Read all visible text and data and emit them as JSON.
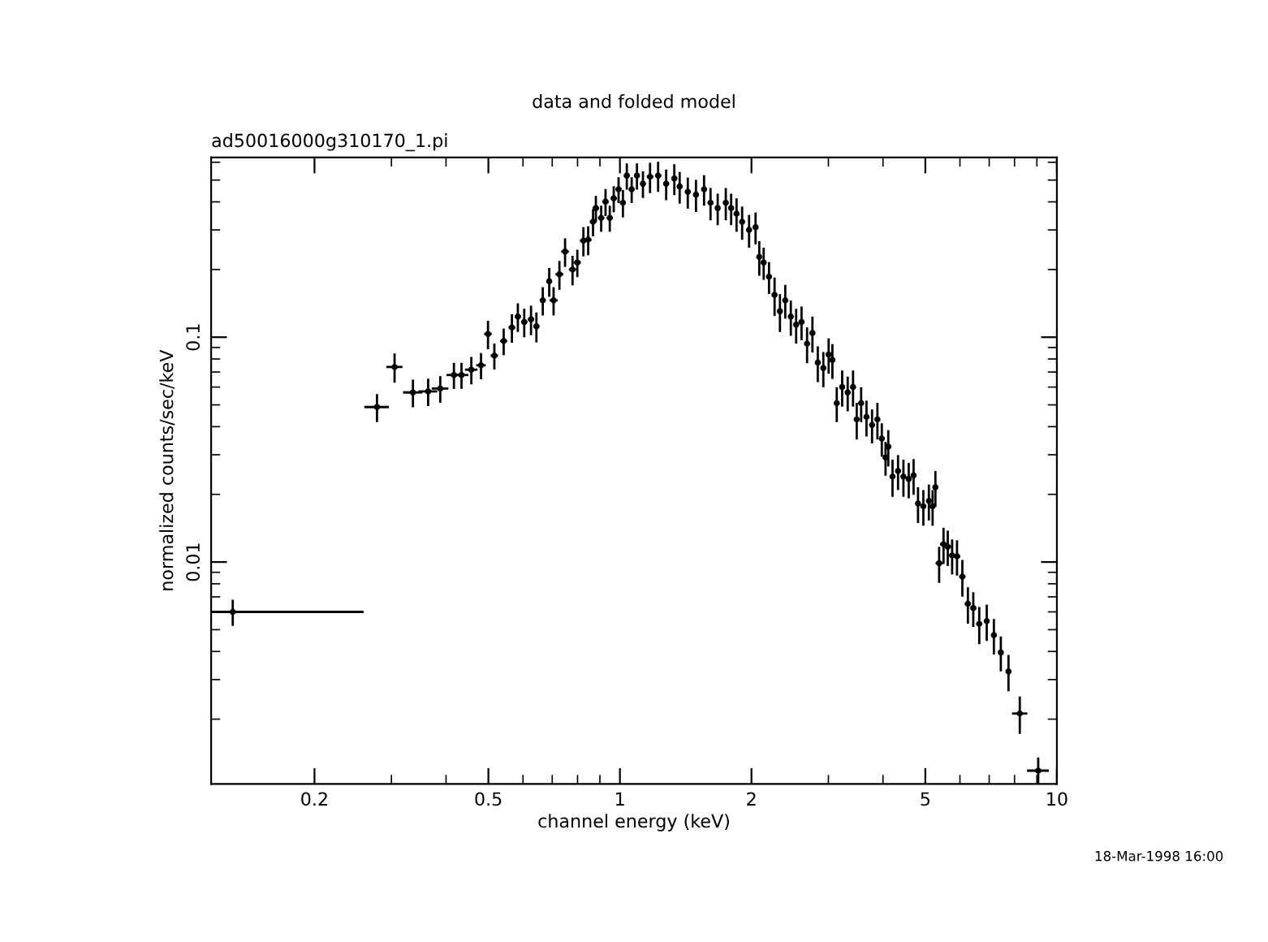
{
  "chart_data": {
    "type": "scatter",
    "title": "data and folded model",
    "subtitle": "ad50016000g310170_1.pi",
    "xlabel": "channel energy (keV)",
    "ylabel": "normalized counts/sec/keV",
    "annotations": [
      "18-Mar-1998 16:00"
    ],
    "log": "xy",
    "grid": false,
    "legend": false,
    "xlim": [
      0.116,
      10
    ],
    "ylim": [
      0.00103,
      0.63
    ],
    "xticks": [
      0.2,
      0.5,
      1,
      2,
      5,
      10
    ],
    "yticks": [
      0.01,
      0.1
    ],
    "series": [
      {
        "color": "#000000",
        "x": [
          0.13,
          0.278,
          0.305,
          0.336,
          0.364,
          0.388,
          0.417,
          0.434,
          0.457,
          0.481,
          0.499,
          0.516,
          0.542,
          0.566,
          0.584,
          0.604,
          0.626,
          0.644,
          0.666,
          0.689,
          0.705,
          0.727,
          0.749,
          0.779,
          0.799,
          0.825,
          0.846,
          0.868,
          0.881,
          0.906,
          0.927,
          0.948,
          0.968,
          0.993,
          1.016,
          1.037,
          1.064,
          1.094,
          1.129,
          1.172,
          1.223,
          1.276,
          1.332,
          1.37,
          1.43,
          1.493,
          1.558,
          1.612,
          1.674,
          1.747,
          1.797,
          1.849,
          1.904,
          1.975,
          2.044,
          2.084,
          2.133,
          2.194,
          2.259,
          2.324,
          2.39,
          2.461,
          2.531,
          2.604,
          2.681,
          2.758,
          2.837,
          2.921,
          3.004,
          3.064,
          3.135,
          3.226,
          3.321,
          3.416,
          3.483,
          3.565,
          3.667,
          3.776,
          3.884,
          3.975,
          4.054,
          4.113,
          4.206,
          4.33,
          4.455,
          4.581,
          4.7,
          4.811,
          4.948,
          5.094,
          5.195,
          5.272,
          5.377,
          5.503,
          5.627,
          5.758,
          5.908,
          6.077,
          6.257,
          6.437,
          6.643,
          6.91,
          7.175,
          7.443,
          7.749,
          8.225,
          9.063
        ],
        "values": [
          0.006,
          0.0489,
          0.0737,
          0.0568,
          0.0574,
          0.0591,
          0.0679,
          0.0679,
          0.0717,
          0.075,
          0.1034,
          0.0828,
          0.0962,
          0.1105,
          0.1235,
          0.1169,
          0.1201,
          0.1118,
          0.1459,
          0.1773,
          0.1459,
          0.1905,
          0.2405,
          0.2001,
          0.215,
          0.2688,
          0.2715,
          0.3262,
          0.3751,
          0.3394,
          0.4009,
          0.3394,
          0.4145,
          0.455,
          0.3963,
          0.5233,
          0.455,
          0.5233,
          0.4816,
          0.5172,
          0.5233,
          0.4816,
          0.5085,
          0.4681,
          0.443,
          0.4306,
          0.455,
          0.3963,
          0.3751,
          0.3963,
          0.3751,
          0.3543,
          0.3262,
          0.3,
          0.3087,
          0.2276,
          0.215,
          0.1858,
          0.1542,
          0.1305,
          0.1459,
          0.1235,
          0.1137,
          0.1169,
          0.0936,
          0.1045,
          0.0771,
          0.0729,
          0.0838,
          0.0792,
          0.0509,
          0.0601,
          0.0568,
          0.0601,
          0.0431,
          0.0509,
          0.0442,
          0.0407,
          0.0431,
          0.0354,
          0.0292,
          0.0326,
          0.024,
          0.0254,
          0.024,
          0.0234,
          0.0243,
          0.0182,
          0.0177,
          0.0187,
          0.0177,
          0.0215,
          0.00988,
          0.012,
          0.0117,
          0.0107,
          0.0106,
          0.00861,
          0.00652,
          0.00624,
          0.00531,
          0.00546,
          0.00473,
          0.00396,
          0.00326,
          0.00212,
          0.00118
        ],
        "errors": [
          0.0008,
          0.007,
          0.011,
          0.008,
          0.008,
          0.008,
          0.009,
          0.009,
          0.01,
          0.01,
          0.015,
          0.011,
          0.013,
          0.016,
          0.018,
          0.017,
          0.018,
          0.017,
          0.021,
          0.026,
          0.021,
          0.028,
          0.035,
          0.03,
          0.03,
          0.04,
          0.04,
          0.045,
          0.05,
          0.045,
          0.055,
          0.045,
          0.055,
          0.06,
          0.055,
          0.07,
          0.06,
          0.07,
          0.065,
          0.08,
          0.08,
          0.075,
          0.08,
          0.075,
          0.07,
          0.07,
          0.07,
          0.065,
          0.06,
          0.065,
          0.06,
          0.06,
          0.055,
          0.05,
          0.05,
          0.04,
          0.035,
          0.03,
          0.03,
          0.025,
          0.025,
          0.022,
          0.02,
          0.02,
          0.017,
          0.019,
          0.014,
          0.013,
          0.015,
          0.014,
          0.009,
          0.011,
          0.01,
          0.011,
          0.008,
          0.009,
          0.008,
          0.007,
          0.008,
          0.006,
          0.005,
          0.006,
          0.0045,
          0.0045,
          0.0045,
          0.0042,
          0.0044,
          0.0033,
          0.0032,
          0.0034,
          0.0032,
          0.0039,
          0.0018,
          0.0022,
          0.0021,
          0.0019,
          0.0019,
          0.0016,
          0.0012,
          0.0011,
          0.001,
          0.001,
          0.00085,
          0.0007,
          0.0006,
          0.0004,
          0.00017
        ],
        "xerrors": [
          [
            0.116,
            0.259
          ],
          0.018,
          0.013,
          0.017,
          0.018,
          0.017,
          0.016,
          0.016,
          0.015,
          0.012,
          0.01,
          0.01,
          0.01,
          0.01,
          0.01,
          0.01,
          0.01,
          0.01,
          0.01,
          0.01,
          0.015,
          0.015,
          0.015,
          0.015,
          0.015,
          0.015,
          0.015,
          0.015,
          0.015,
          0.015,
          0.015,
          0.015,
          0.015,
          0.015,
          0.015,
          0.015,
          0.015,
          0.015,
          0.015,
          0.02,
          0.02,
          0.02,
          0.02,
          0.02,
          0.02,
          0.02,
          0.02,
          0.02,
          0.02,
          0.02,
          0.02,
          0.02,
          0.02,
          0.02,
          0.02,
          0.02,
          0.02,
          0.02,
          0.02,
          0.02,
          0.03,
          0.03,
          0.03,
          0.03,
          0.03,
          0.03,
          0.03,
          0.03,
          0.03,
          0.03,
          0.03,
          0.03,
          0.03,
          0.03,
          0.03,
          0.03,
          0.03,
          0.03,
          0.03,
          0.03,
          0.04,
          0.04,
          0.04,
          0.04,
          0.04,
          0.04,
          0.04,
          0.04,
          0.04,
          0.04,
          0.04,
          0.04,
          0.1,
          0.1,
          0.1,
          0.1,
          0.1,
          0.1,
          0.1,
          0.1,
          0.1,
          0.1,
          0.1,
          0.1,
          0.1,
          0.33,
          0.52
        ]
      }
    ]
  }
}
